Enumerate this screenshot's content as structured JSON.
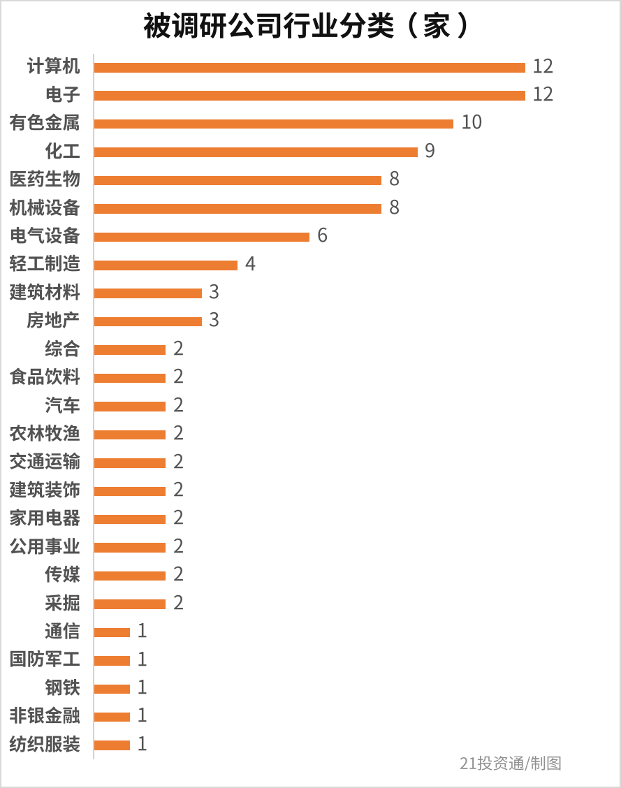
{
  "page": {
    "background": "#FFFFFF",
    "border_color": "#D9D9D9"
  },
  "chart_data": {
    "type": "bar",
    "orientation": "horizontal",
    "title": "被调研公司行业分类（家）",
    "categories": [
      "计算机",
      "电子",
      "有色金属",
      "化工",
      "医药生物",
      "机械设备",
      "电气设备",
      "轻工制造",
      "建筑材料",
      "房地产",
      "综合",
      "食品饮料",
      "汽车",
      "农林牧渔",
      "交通运输",
      "建筑装饰",
      "家用电器",
      "公用事业",
      "传媒",
      "采掘",
      "通信",
      "国防军工",
      "钢铁",
      "非银金融",
      "纺织服装"
    ],
    "values": [
      12,
      12,
      10,
      9,
      8,
      8,
      6,
      4,
      3,
      3,
      2,
      2,
      2,
      2,
      2,
      2,
      2,
      2,
      2,
      2,
      1,
      1,
      1,
      1,
      1
    ],
    "xlabel": "",
    "ylabel": "",
    "xlim": [
      0,
      12
    ],
    "grid": false,
    "legend": null,
    "value_labels_shown": true,
    "bar_color": "#ED7D31",
    "axis_line_color": "#D2D2D2",
    "label_color": "#525252",
    "title_color": "#111111",
    "source_label": "21投资通/制图",
    "source_color": "#8F8F8F"
  }
}
